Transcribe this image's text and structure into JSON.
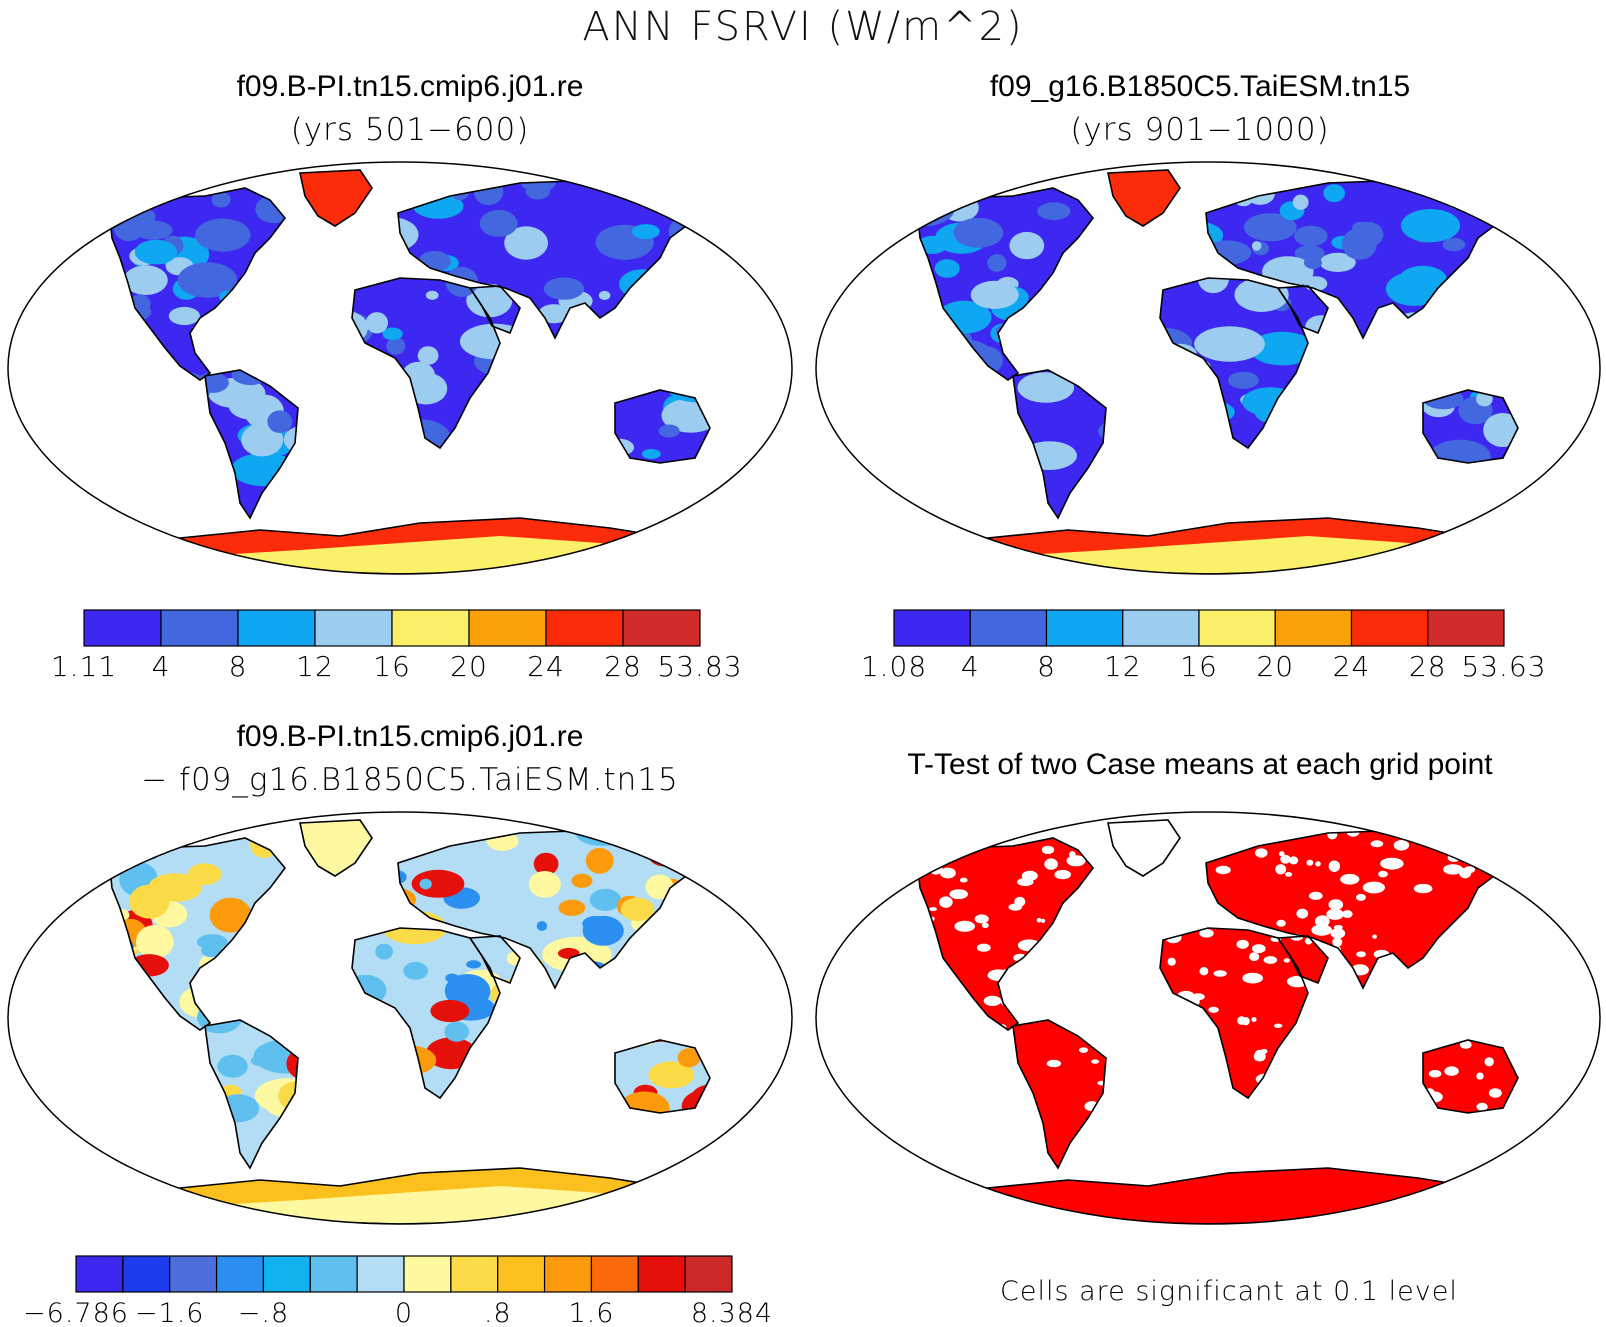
{
  "figure": {
    "title": "ANN FSRVI (W/m^2)"
  },
  "panels": [
    {
      "id": "case1",
      "title": "f09.B-PI.tn15.cmip6.j01.re",
      "subtitle": "(yrs 501−600)",
      "colorbar": {
        "labels": [
          "1.11",
          "4",
          "8",
          "12",
          "16",
          "20",
          "24",
          "28",
          "53.83"
        ],
        "colors": [
          "#3c28f0",
          "#4367df",
          "#0fa7f2",
          "#9ccdf0",
          "#fbf06a",
          "#fba107",
          "#fc2c0b",
          "#d02c2c"
        ]
      },
      "land_palette": [
        "#3c28f0",
        "#4367df",
        "#0fa7f2",
        "#9ccdf0",
        "#fbf06a",
        "#fba107",
        "#fc2c0b",
        "#d02c2c"
      ]
    },
    {
      "id": "case2",
      "title": "f09_g16.B1850C5.TaiESM.tn15",
      "subtitle": "(yrs 901−1000)",
      "colorbar": {
        "labels": [
          "1.08",
          "4",
          "8",
          "12",
          "16",
          "20",
          "24",
          "28",
          "53.63"
        ],
        "colors": [
          "#3c28f0",
          "#4367df",
          "#0fa7f2",
          "#9ccdf0",
          "#fbf06a",
          "#fba107",
          "#fc2c0b",
          "#d02c2c"
        ]
      }
    },
    {
      "id": "difference",
      "title": "f09.B-PI.tn15.cmip6.j01.re",
      "subtitle": "− f09_g16.B1850C5.TaiESM.tn15",
      "colorbar": {
        "labels": [
          "−6.786",
          "",
          "−1.6",
          "",
          "−.8",
          "",
          "",
          "0",
          "",
          ".8",
          "",
          "1.6",
          "",
          "",
          "8.384"
        ],
        "colors": [
          "#3c28f0",
          "#1e3cee",
          "#4d6fdc",
          "#2a8ff0",
          "#10b3f0",
          "#5fc0f0",
          "#b3ddf4",
          "#fef8a0",
          "#fbda48",
          "#fbc01e",
          "#fb9a0a",
          "#fb6a0a",
          "#e5100a",
          "#cc2a2a"
        ]
      }
    },
    {
      "id": "ttest",
      "title": "T-Test of two Case means at each grid point",
      "footnote": "Cells are significant at 0.1 level",
      "significant_color": "#ff0000"
    }
  ]
}
